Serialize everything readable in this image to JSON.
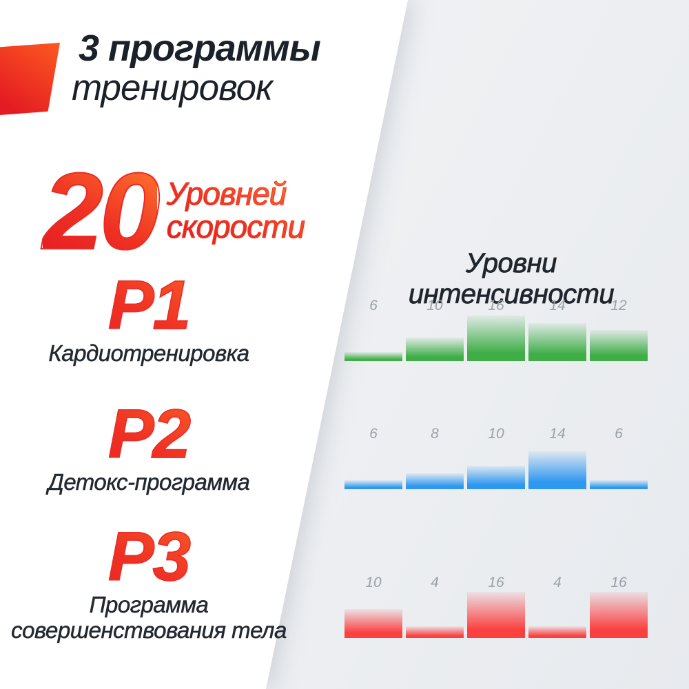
{
  "canvas": {
    "bg_gray": "#edeff2",
    "panel_white": "#ffffff"
  },
  "accent": {
    "color_from": "#ff6a28",
    "color_to": "#e31b24"
  },
  "hero": {
    "title_line1": "3 программы",
    "title_line2": "тренировок",
    "text_color": "#1b212a"
  },
  "speed": {
    "number": "20",
    "label_line1": "Уровней",
    "label_line2": "скорости"
  },
  "programs": [
    {
      "code": "P1",
      "name_lines": [
        "Кардиотренировка"
      ]
    },
    {
      "code": "P2",
      "name_lines": [
        "Детокс-программа"
      ]
    },
    {
      "code": "P3",
      "name_lines": [
        "Программа",
        "совершенствования тела"
      ]
    }
  ],
  "intensity": {
    "heading": "Уровни интенсивности",
    "label_color": "#99a1a9"
  },
  "chart_data": [
    {
      "type": "bar",
      "program": "P1",
      "title": "Уровни интенсивности",
      "values": [
        6,
        10,
        16,
        14,
        12
      ],
      "bar_color": "#3fae47",
      "value_labels_shown": true,
      "ylim": [
        0,
        16
      ],
      "grid": false,
      "legend": false
    },
    {
      "type": "bar",
      "program": "P2",
      "title": "Уровни интенсивности",
      "values": [
        6,
        8,
        10,
        14,
        6
      ],
      "bar_color": "#2e97f0",
      "value_labels_shown": true,
      "ylim": [
        0,
        16
      ],
      "grid": false,
      "legend": false
    },
    {
      "type": "bar",
      "program": "P3",
      "title": "Уровни интенсивности",
      "values": [
        10,
        4,
        16,
        4,
        16
      ],
      "bar_color": "#fb4040",
      "value_labels_shown": true,
      "ylim": [
        0,
        16
      ],
      "grid": false,
      "legend": false
    }
  ]
}
